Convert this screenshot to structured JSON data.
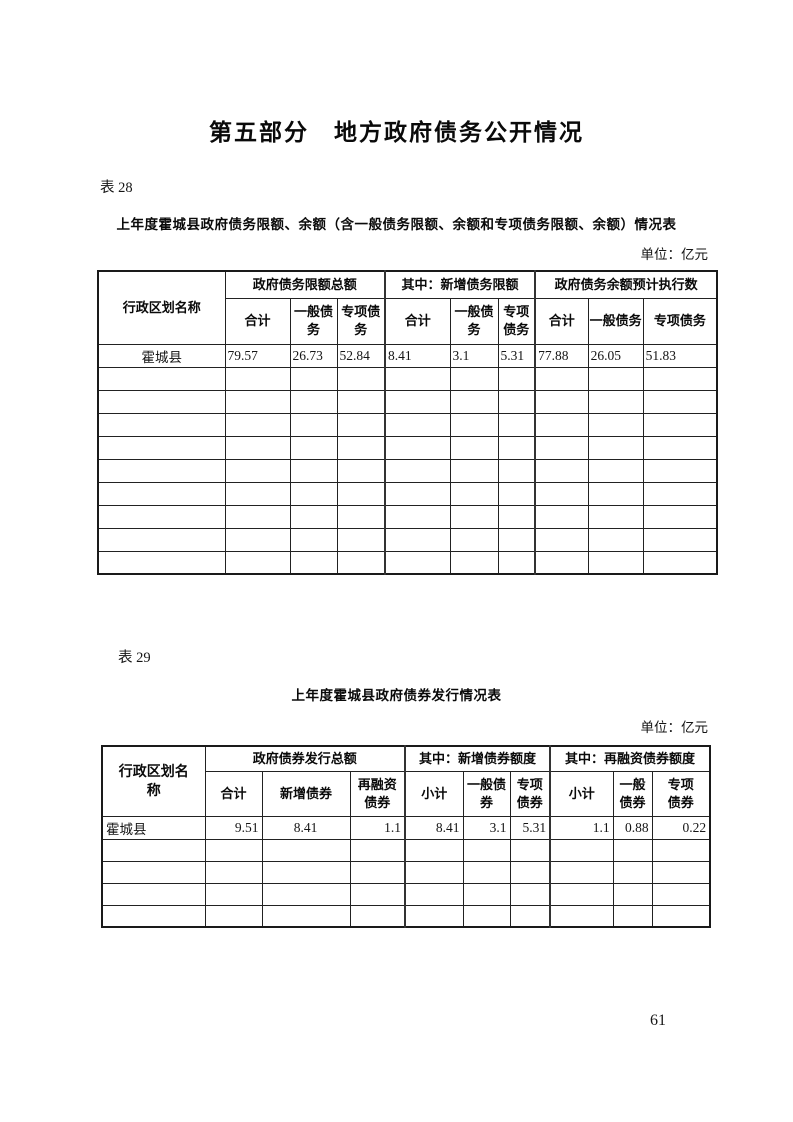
{
  "page": {
    "title": "第五部分　地方政府债务公开情况",
    "page_number": "61"
  },
  "table28": {
    "label": "表 28",
    "title": "上年度霍城县政府债务限额、余额（含一般债务限额、余额和专项债务限额、余额）情况表",
    "unit": "单位：亿元",
    "row_header": "行政区划名称",
    "groups": [
      {
        "label": "政府债务限额总额",
        "columns": [
          "合计",
          "一般债务",
          "专项债务"
        ]
      },
      {
        "label": "其中：新增债务限额",
        "columns": [
          "合计",
          "一般债务",
          "专项债务"
        ]
      },
      {
        "label": "政府债务余额预计执行数",
        "columns": [
          "合计",
          "一般债务",
          "专项债务"
        ]
      }
    ],
    "rows": [
      {
        "name": "霍城县",
        "values": [
          "79.57",
          "26.73",
          "52.84",
          "8.41",
          "3.1",
          "5.31",
          "77.88",
          "26.05",
          "51.83"
        ]
      }
    ],
    "empty_row_count": 9
  },
  "table29": {
    "label": "表 29",
    "title": "上年度霍城县政府债券发行情况表",
    "unit": "单位：亿元",
    "row_header": "行政区划名称",
    "groups": [
      {
        "label": "政府债券发行总额",
        "columns": [
          "合计",
          "新增债券",
          "再融资债券"
        ]
      },
      {
        "label": "其中：新增债券额度",
        "columns": [
          "小计",
          "一般债券",
          "专项债券"
        ]
      },
      {
        "label": "其中：再融资债券额度",
        "columns": [
          "小计",
          "一般债券",
          "专项债券"
        ]
      }
    ],
    "rows": [
      {
        "name": "霍城县",
        "values": [
          "9.51",
          "8.41",
          "1.1",
          "8.41",
          "3.1",
          "5.31",
          "1.1",
          "0.88",
          "0.22"
        ]
      }
    ],
    "empty_row_count": 4
  }
}
